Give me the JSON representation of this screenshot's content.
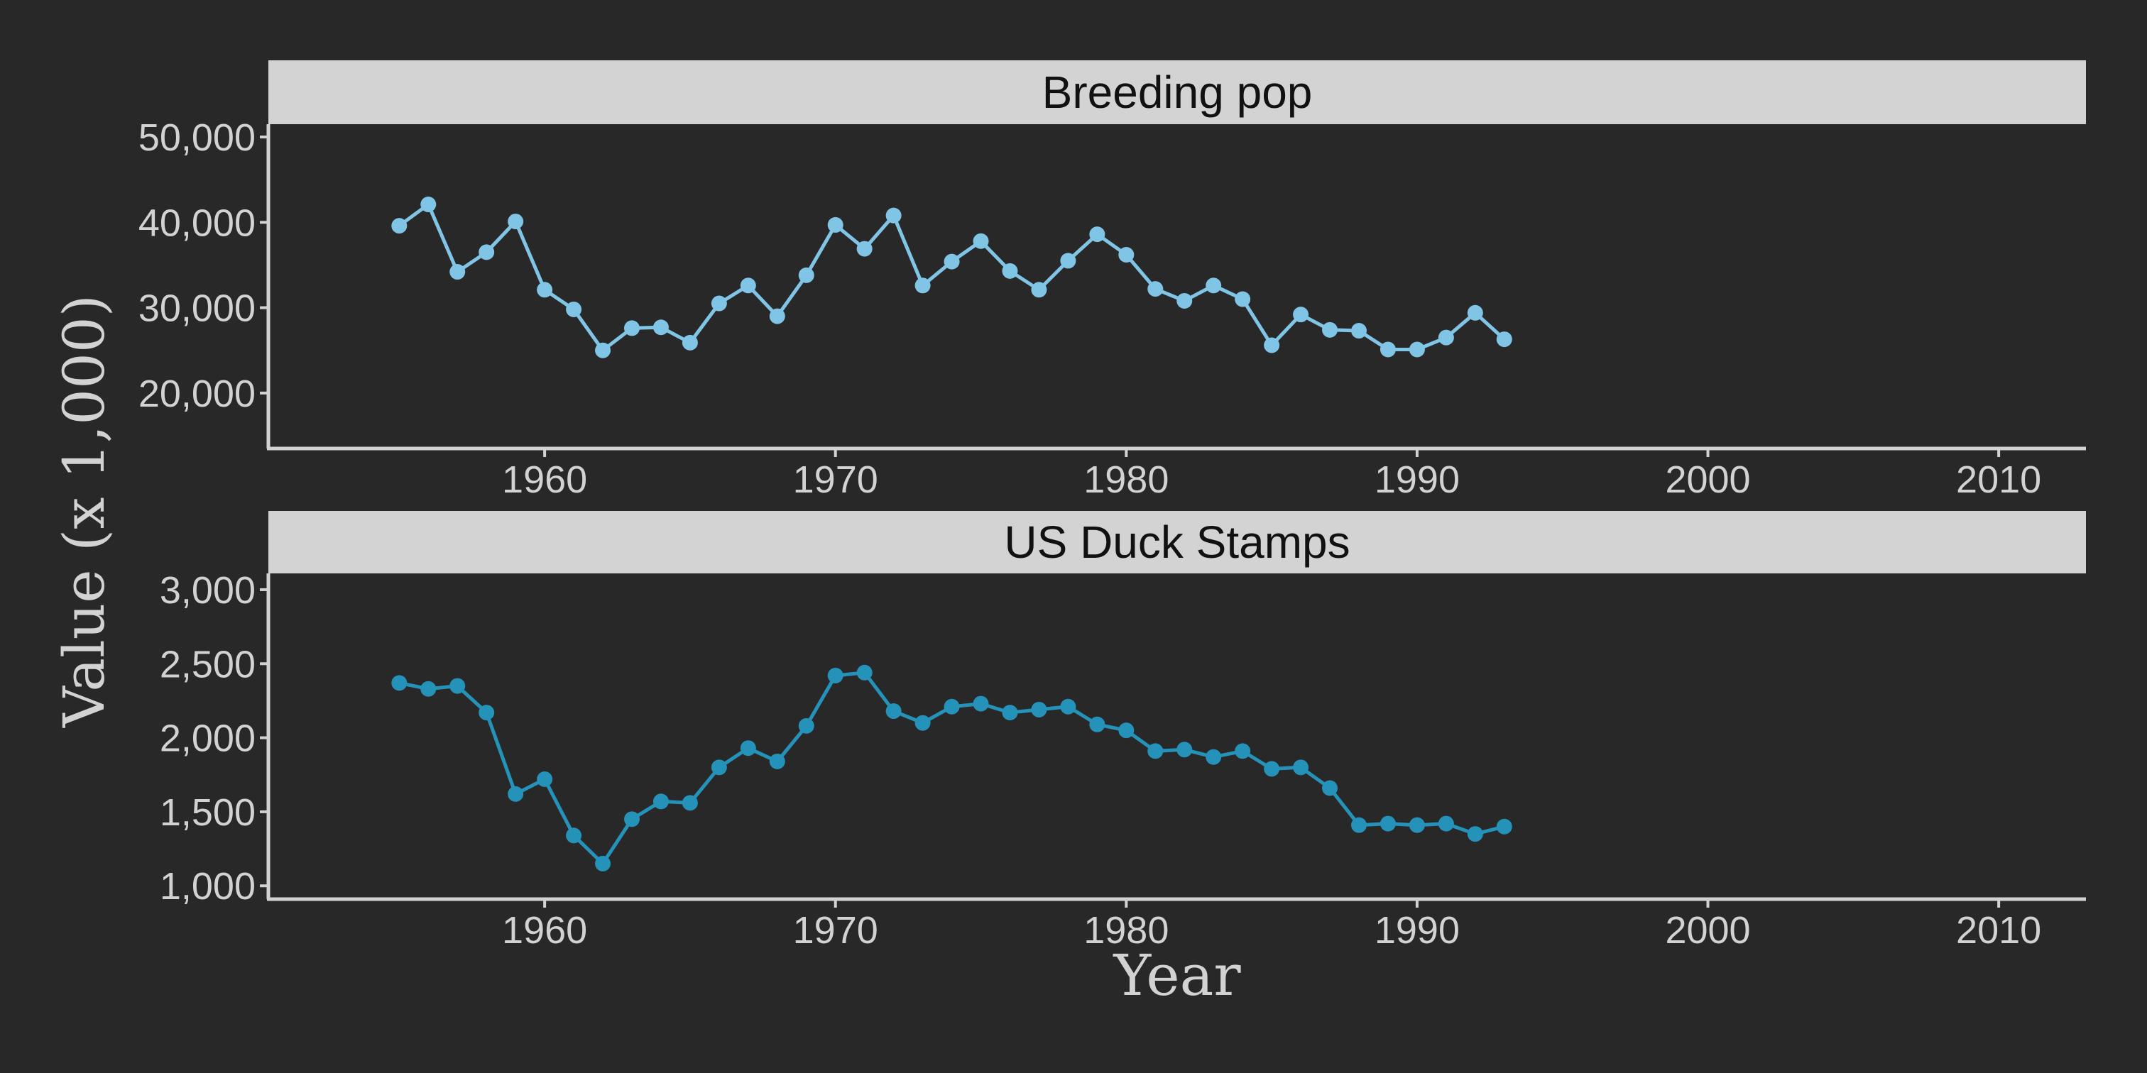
{
  "colors": {
    "background": "#282828",
    "strip": "#d3d3d3",
    "axis": "#d2d2d2",
    "text": "#d2d2d2",
    "series_breeding": "#80c4e6",
    "series_stamps": "#2492b9"
  },
  "chart_data": {
    "type": "line",
    "xlabel": "Year",
    "ylabel": "Value (x 1,000)",
    "panels": [
      {
        "title": "Breeding pop",
        "xlim": [
          1950.5,
          2013
        ],
        "xticks": [
          1960,
          1970,
          1980,
          1990,
          2000,
          2010
        ],
        "ylim": [
          13500,
          51500
        ],
        "yticks": [
          20000,
          30000,
          40000,
          50000
        ],
        "ytick_labels": [
          "20,000",
          "30,000",
          "40,000",
          "50,000"
        ],
        "series": [
          {
            "x": [
              1955,
              1956,
              1957,
              1958,
              1959,
              1960,
              1961,
              1962,
              1963,
              1964,
              1965,
              1966,
              1967,
              1968,
              1969,
              1970,
              1971,
              1972,
              1973,
              1974,
              1975,
              1976,
              1977,
              1978,
              1979,
              1980,
              1981,
              1982,
              1983,
              1984,
              1985,
              1986,
              1987,
              1988,
              1989,
              1990,
              1991,
              1992,
              1993
            ],
            "values": [
              39600,
              42100,
              34200,
              36500,
              40100,
              32100,
              29800,
              25000,
              27600,
              27700,
              25900,
              30500,
              32600,
              29000,
              33800,
              39700,
              36900,
              40800,
              32600,
              35400,
              37800,
              34300,
              32100,
              35500,
              38600,
              36200,
              32200,
              30800,
              32600,
              31000,
              25600,
              29200,
              27400,
              27300,
              25100,
              25100,
              26500,
              29400,
              26300
            ]
          }
        ]
      },
      {
        "title": "US Duck Stamps",
        "xlim": [
          1950.5,
          2013
        ],
        "xticks": [
          1960,
          1970,
          1980,
          1990,
          2000,
          2010
        ],
        "ylim": [
          910,
          3110
        ],
        "yticks": [
          1000,
          1500,
          2000,
          2500,
          3000
        ],
        "ytick_labels": [
          "1,000",
          "1,500",
          "2,000",
          "2,500",
          "3,000"
        ],
        "series": [
          {
            "x": [
              1955,
              1956,
              1957,
              1958,
              1959,
              1960,
              1961,
              1962,
              1963,
              1964,
              1965,
              1966,
              1967,
              1968,
              1969,
              1970,
              1971,
              1972,
              1973,
              1974,
              1975,
              1976,
              1977,
              1978,
              1979,
              1980,
              1981,
              1982,
              1983,
              1984,
              1985,
              1986,
              1987,
              1988,
              1989,
              1990,
              1991,
              1992,
              1993
            ],
            "values": [
              2370,
              2330,
              2350,
              2170,
              1620,
              1720,
              1340,
              1150,
              1450,
              1570,
              1560,
              1800,
              1930,
              1840,
              2080,
              2420,
              2440,
              2180,
              2100,
              2210,
              2230,
              2170,
              2190,
              2210,
              2090,
              2050,
              1910,
              1920,
              1870,
              1910,
              1790,
              1800,
              1660,
              1410,
              1420,
              1410,
              1420,
              1350,
              1400
            ]
          }
        ]
      }
    ]
  }
}
